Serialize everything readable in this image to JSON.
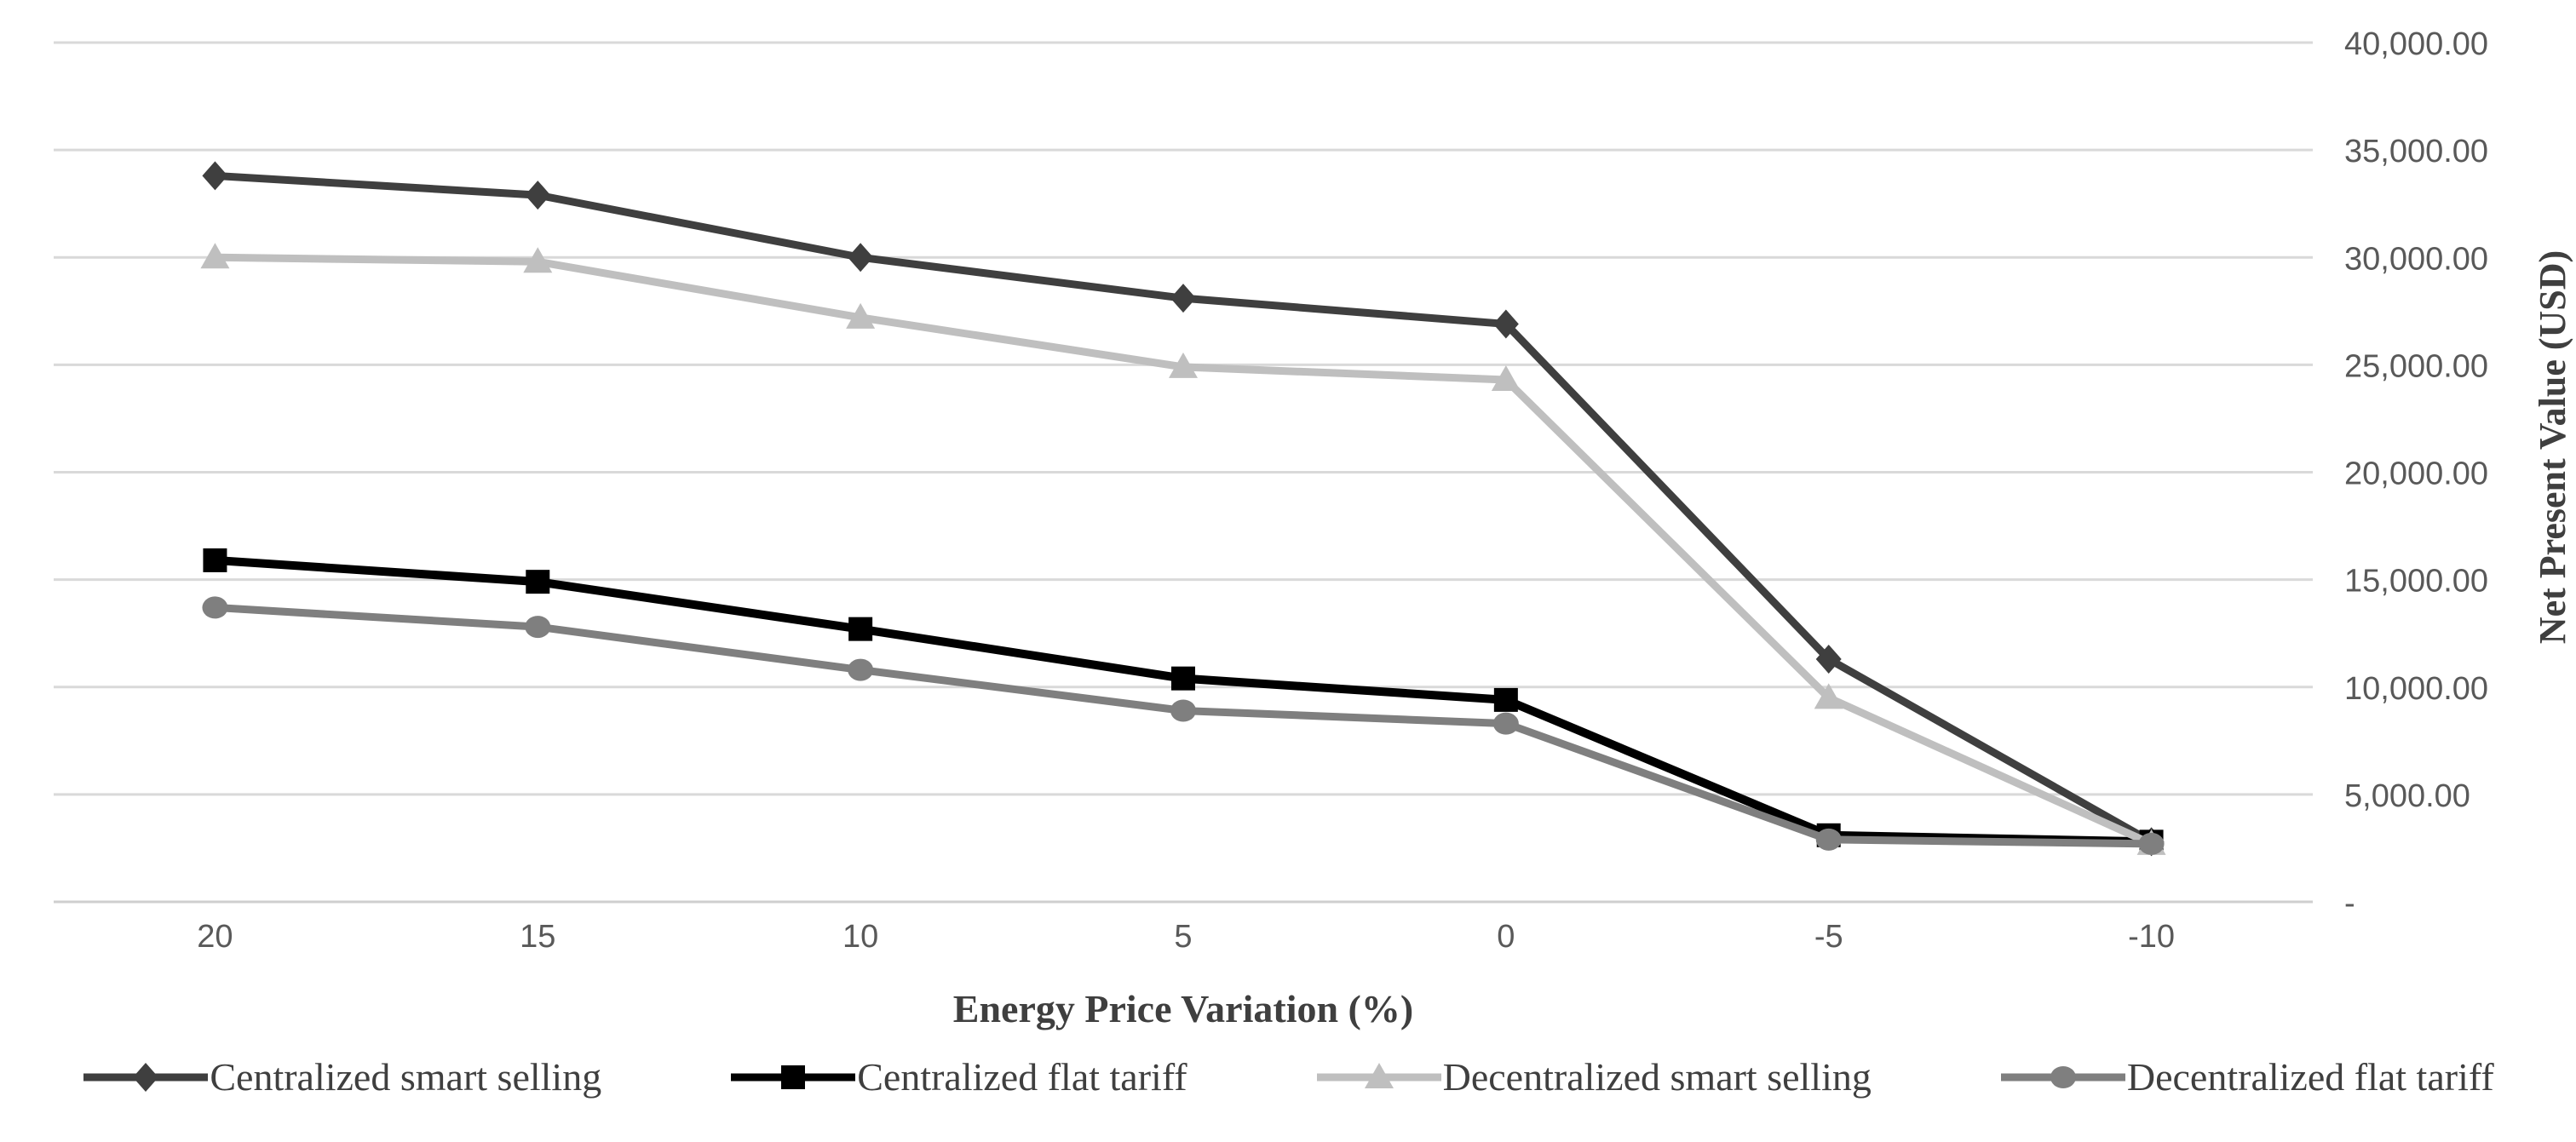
{
  "chart_data": {
    "type": "line",
    "title": "",
    "xlabel": "Energy Price Variation (%)",
    "ylabel": "Net Present Value (USD)",
    "categories": [
      "20",
      "15",
      "10",
      "5",
      "0",
      "-5",
      "-10"
    ],
    "y_axis": {
      "min": 0,
      "max": 40000,
      "step": 5000,
      "tick_labels": [
        "-",
        "5,000.00",
        "10,000.00",
        "15,000.00",
        "20,000.00",
        "25,000.00",
        "30,000.00",
        "35,000.00",
        "40,000.00"
      ]
    },
    "grid": true,
    "legend_position": "bottom",
    "series": [
      {
        "name": "Centralized smart selling",
        "marker": "diamond",
        "color": "#3f3f3f",
        "values": [
          33800,
          32900,
          30000,
          28100,
          26900,
          11300,
          2800
        ]
      },
      {
        "name": "Centralized flat tariff",
        "marker": "square",
        "color": "#000000",
        "values": [
          15900,
          14900,
          12700,
          10400,
          9400,
          3100,
          2800
        ]
      },
      {
        "name": "Decentralized smart selling",
        "marker": "triangle",
        "color": "#bfbfbf",
        "values": [
          30000,
          29800,
          27200,
          24900,
          24300,
          9500,
          2700
        ]
      },
      {
        "name": "Decentralized flat tariff",
        "marker": "circle",
        "color": "#7f7f7f",
        "values": [
          13700,
          12800,
          10800,
          8900,
          8300,
          2900,
          2700
        ]
      }
    ]
  },
  "colors": {
    "background": "#ffffff",
    "gridline": "#d9d9d9",
    "axis_line": "#cfcfcf",
    "tick_label": "#595959",
    "axis_title": "#3f3f3f",
    "legend_text": "#3f3f3f"
  }
}
